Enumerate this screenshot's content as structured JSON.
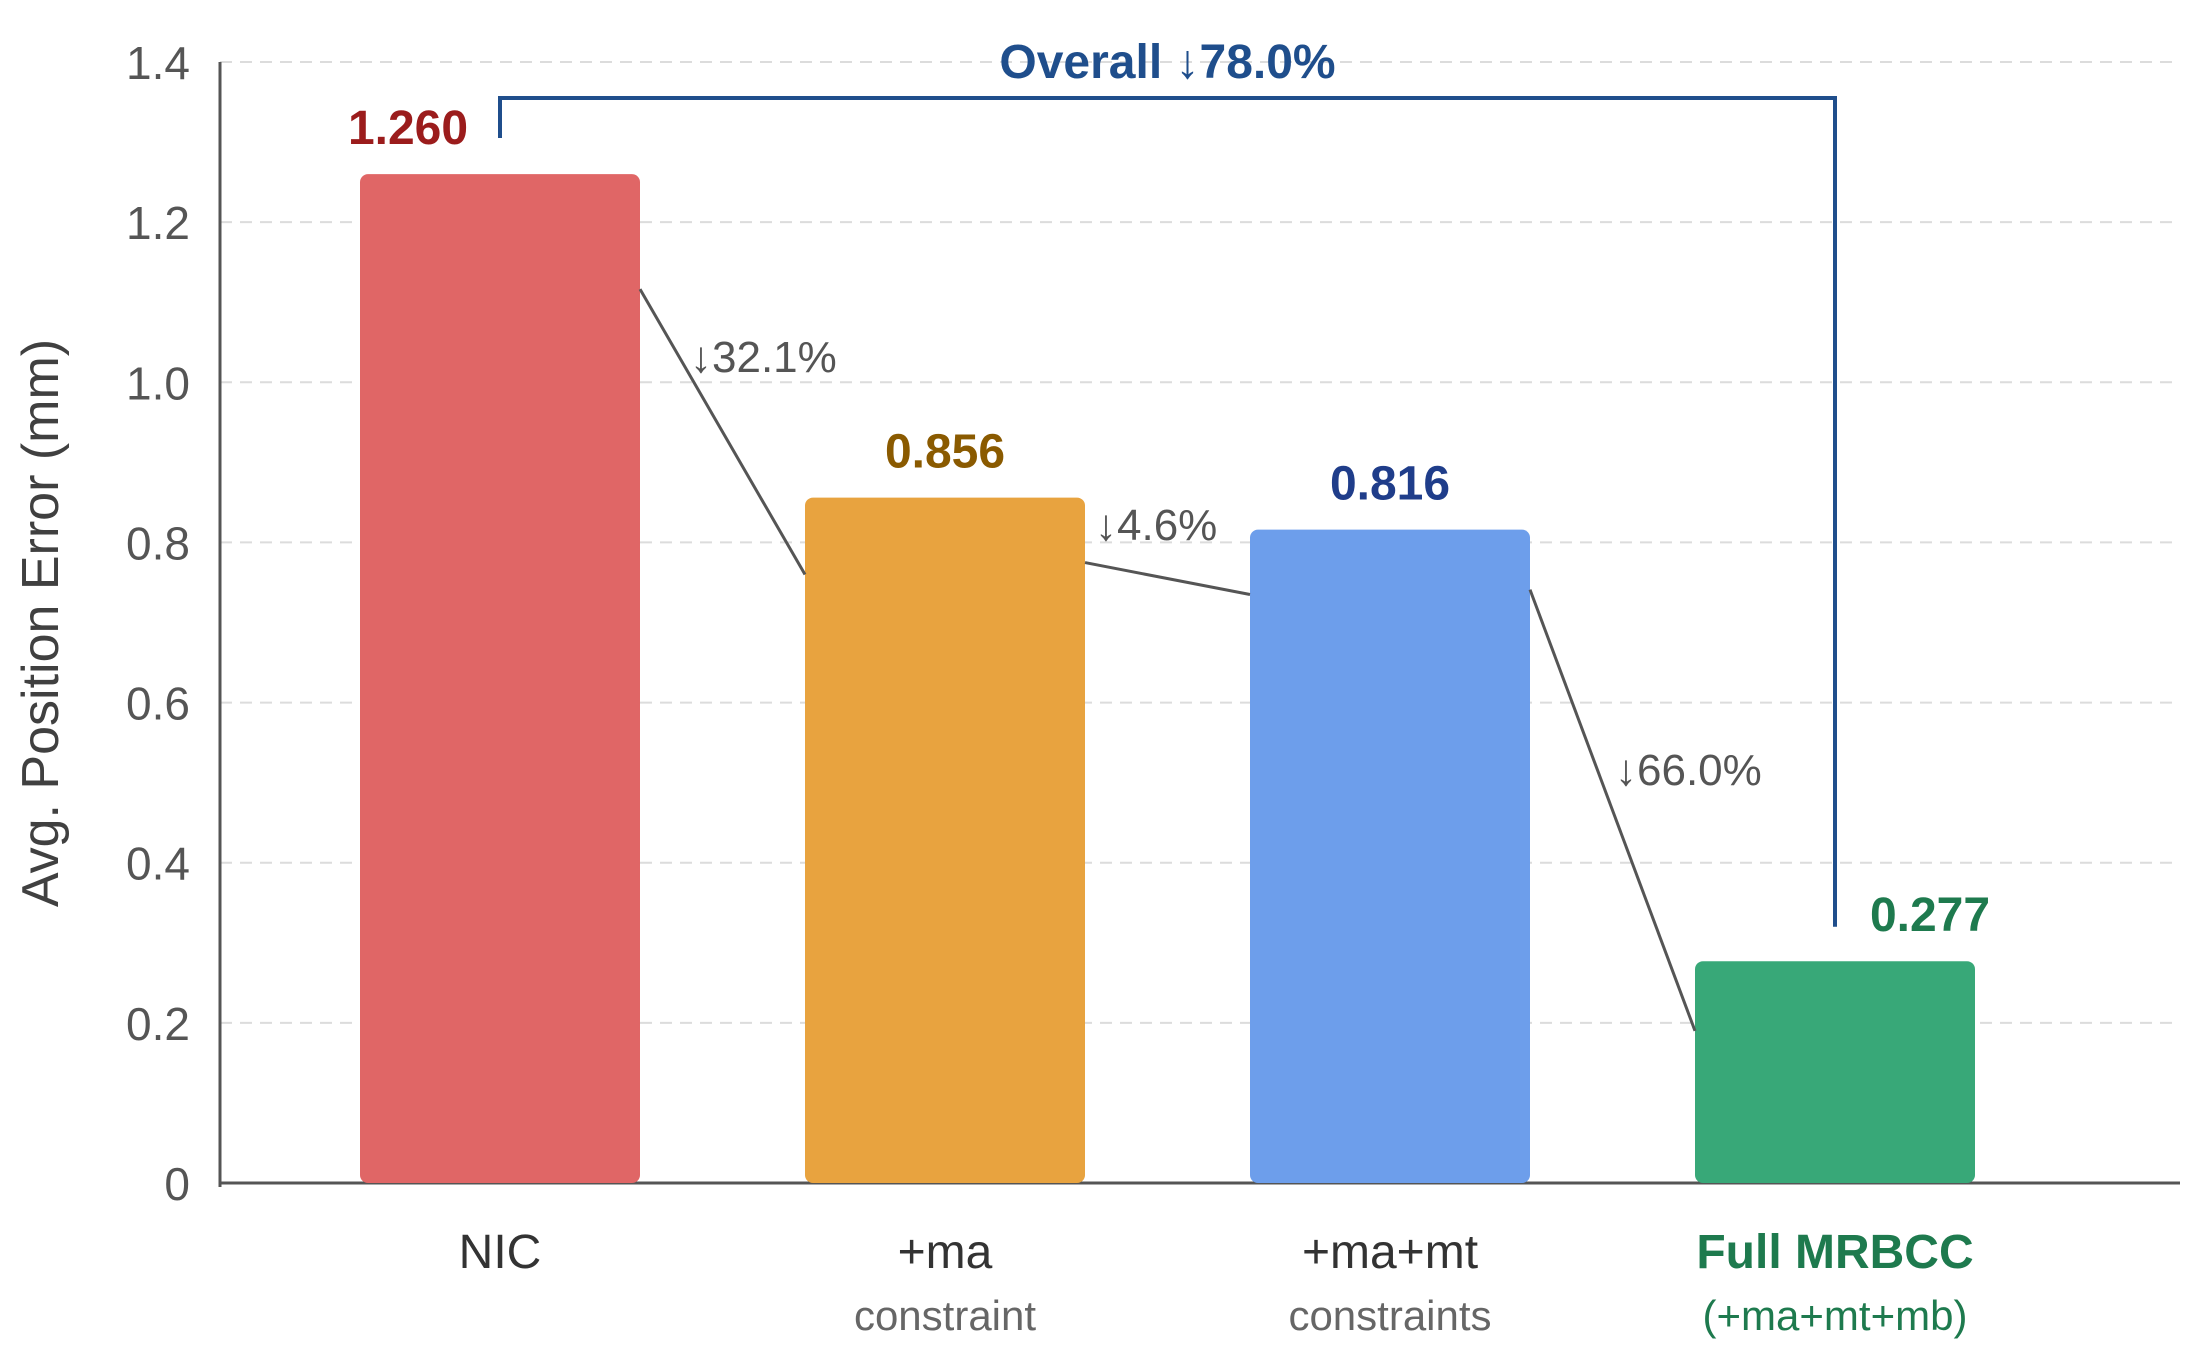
{
  "chart_data": {
    "type": "bar",
    "title": "",
    "xlabel": "",
    "ylabel": "Avg. Position Error (mm)",
    "ylim": [
      0,
      1.4
    ],
    "yticks": [
      "0",
      "0.2",
      "0.4",
      "0.6",
      "0.8",
      "1.0",
      "1.2",
      "1.4"
    ],
    "grid": true,
    "categories": [
      {
        "label": "NIC",
        "sublabel": ""
      },
      {
        "label": "+ma",
        "sublabel": "constraint"
      },
      {
        "label": "+ma+mt",
        "sublabel": "constraints"
      },
      {
        "label": "Full MRBCC",
        "sublabel": "(+ma+mt+mb)"
      }
    ],
    "values": [
      1.26,
      0.856,
      0.816,
      0.277
    ],
    "value_labels": [
      "1.260",
      "0.856",
      "0.816",
      "0.277"
    ],
    "bar_colors": [
      "#e06666",
      "#e8a33f",
      "#6d9eeb",
      "#38a878"
    ],
    "value_label_colors": [
      "#9b1c1c",
      "#8a5a00",
      "#1f3d8a",
      "#1e7a4e"
    ],
    "step_reductions": [
      "↓32.1%",
      "↓4.6%",
      "↓66.0%"
    ],
    "overall_reduction": "Overall ↓78.0%",
    "overall_color": "#1f4e8c",
    "highlight_category_color": "#1e7a4e"
  }
}
